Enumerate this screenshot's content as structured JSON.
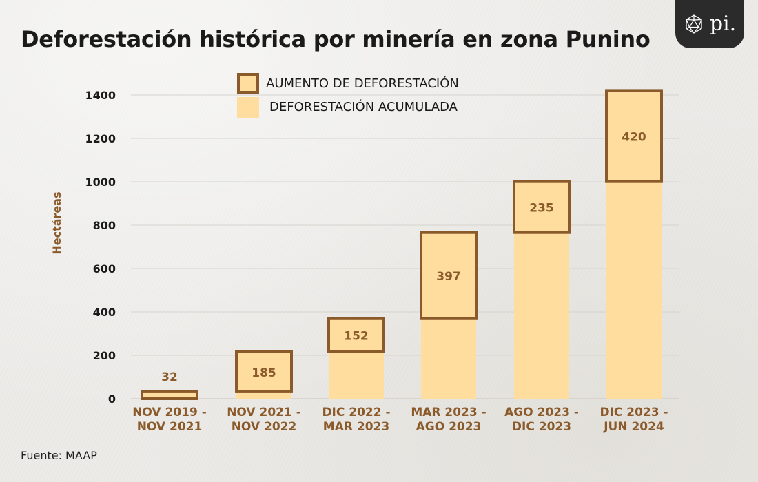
{
  "title": "Deforestación histórica por minería en zona Punino",
  "source": "Fuente: MAAP",
  "logo": {
    "text": "pi.",
    "icon": "icosahedron-icon"
  },
  "colors": {
    "accumulated_fill": "#fedd9e",
    "increase_stroke": "#8b5a2b",
    "label_color": "#8b5a2b",
    "title_color": "#1a1a1a"
  },
  "chart_data": {
    "type": "bar",
    "stacked": true,
    "title": "Deforestación histórica por minería en zona Punino",
    "ylabel": "Hectáreas",
    "xlabel": "",
    "ylim": [
      0,
      1400
    ],
    "yticks": [
      0,
      200,
      400,
      600,
      800,
      1000,
      1200,
      1400
    ],
    "grid": true,
    "legend_position": "top-center",
    "categories": [
      [
        "NOV 2019 -",
        "NOV 2021"
      ],
      [
        "NOV 2021 -",
        "NOV 2022"
      ],
      [
        "DIC 2022 -",
        "MAR 2023"
      ],
      [
        "MAR 2023 -",
        "AGO 2023"
      ],
      [
        "AGO 2023 -",
        "DIC 2023"
      ],
      [
        "DIC 2023 -",
        "JUN 2024"
      ]
    ],
    "series": [
      {
        "name": "DEFORESTACIÓN ACUMULADA",
        "values": [
          0,
          32,
          217,
          369,
          766,
          1001
        ]
      },
      {
        "name": "AUMENTO DE DEFORESTACIÓN",
        "values": [
          32,
          185,
          152,
          397,
          235,
          420
        ]
      }
    ],
    "data_labels": [
      "32",
      "185",
      "152",
      "397",
      "235",
      "420"
    ]
  }
}
